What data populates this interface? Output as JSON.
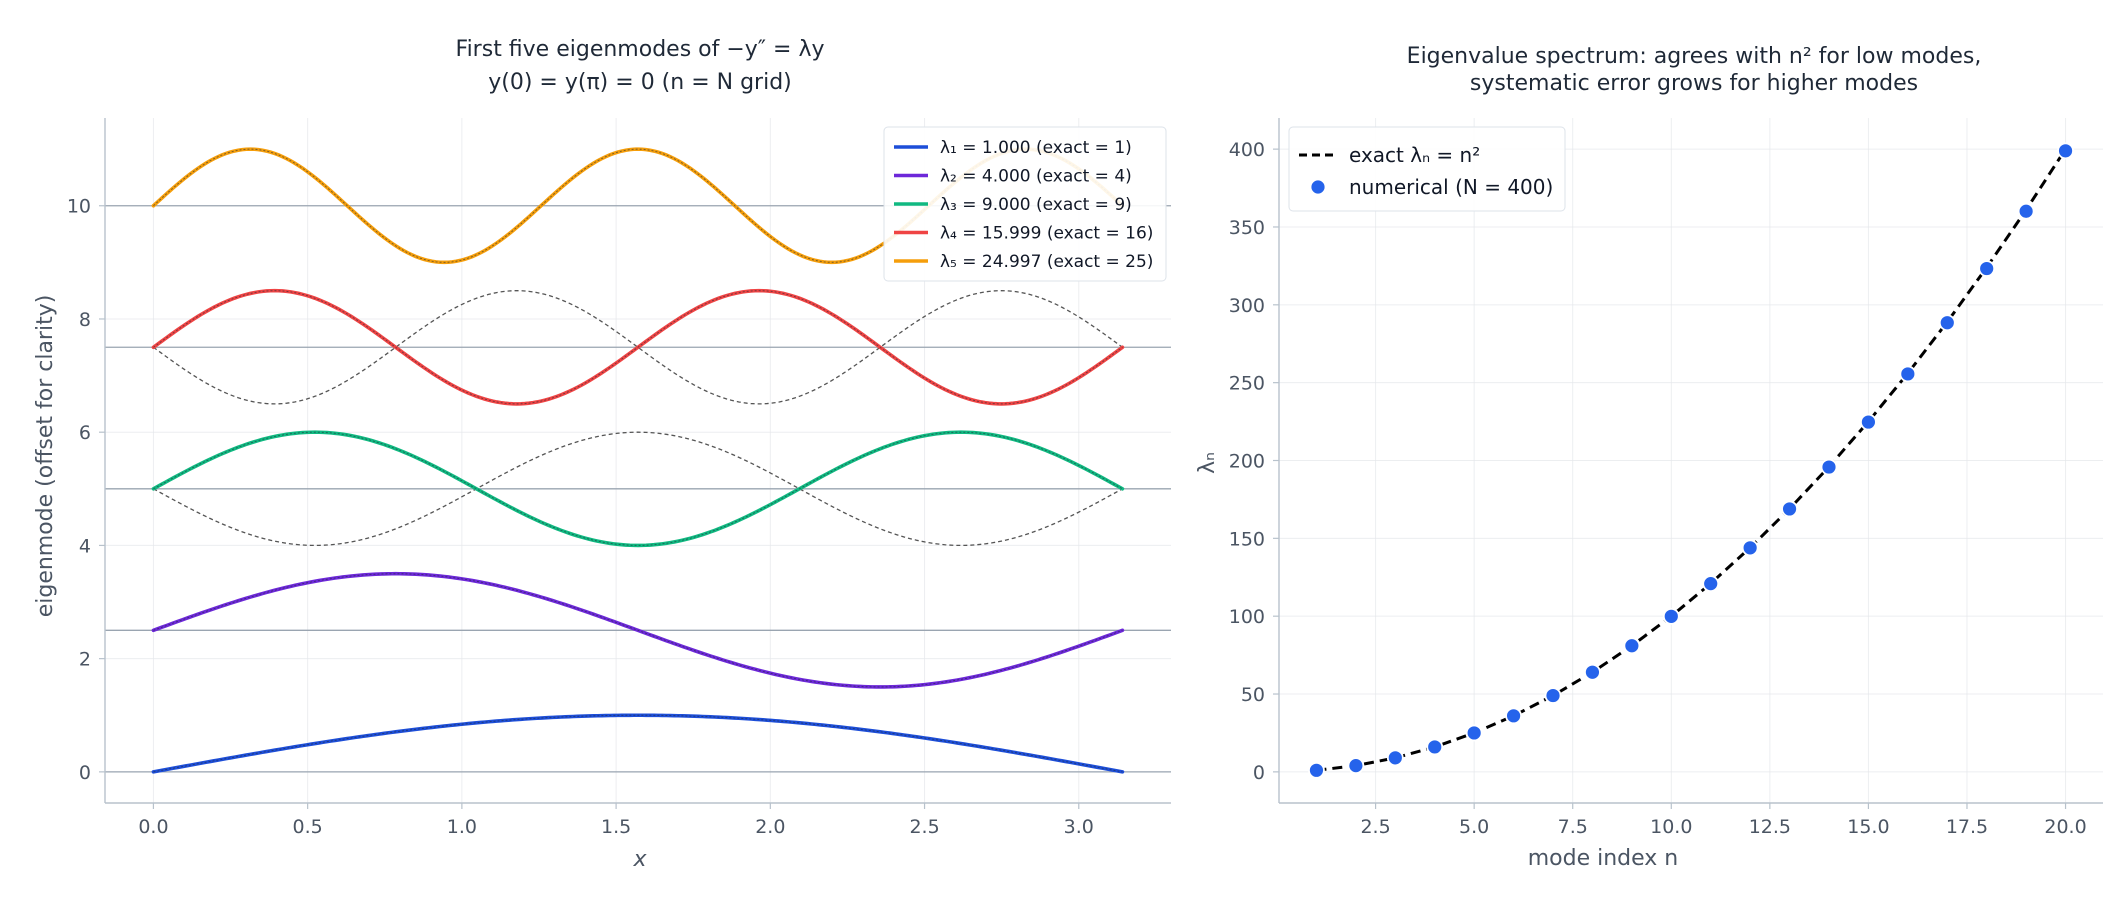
{
  "chart_data": [
    {
      "type": "line",
      "title": [
        "First five eigenmodes of −y″ = λy",
        "y(0) = y(π) = 0  (n = N grid)"
      ],
      "xlabel": "x",
      "ylabel": "eigenmode (offset for clarity)",
      "xlim": [
        -0.157,
        3.299
      ],
      "ylim": [
        -0.55,
        11.55
      ],
      "xticks": [
        "0.0",
        "0.5",
        "1.0",
        "1.5",
        "2.0",
        "2.5",
        "3.0"
      ],
      "xtick_values": [
        0,
        0.5,
        1.0,
        1.5,
        2.0,
        2.5,
        3.0
      ],
      "yticks": [
        "0",
        "2",
        "4",
        "6",
        "8",
        "10"
      ],
      "ytick_values": [
        0,
        2,
        4,
        6,
        8,
        10
      ],
      "x_range": [
        0,
        3.14159
      ],
      "offset_step": 2.5,
      "grid": true,
      "legend_position": "top-right",
      "series": [
        {
          "mode": 1,
          "name": "λ₁ = 1.000 (exact = 1)",
          "offset": 0.0,
          "color": "#1d4ed8"
        },
        {
          "mode": 2,
          "name": "λ₂ = 4.000 (exact = 4)",
          "offset": 2.5,
          "color": "#6d28d9"
        },
        {
          "mode": 3,
          "name": "λ₃ = 9.000 (exact = 9)",
          "offset": 5.0,
          "color": "#10b981"
        },
        {
          "mode": 4,
          "name": "λ₄ = 15.999 (exact = 16)",
          "offset": 7.5,
          "color": "#ef4444"
        },
        {
          "mode": 5,
          "name": "λ₅ = 24.997 (exact = 25)",
          "offset": 10.0,
          "color": "#f59e0b"
        }
      ]
    },
    {
      "type": "scatter",
      "title": [
        "Eigenvalue spectrum: agrees with n² for low modes,",
        "systematic error grows for higher modes"
      ],
      "xlabel": "mode index n",
      "ylabel": "λₙ",
      "xlim": [
        0.05,
        20.95
      ],
      "ylim": [
        -20,
        420
      ],
      "xticks": [
        "2.5",
        "5.0",
        "7.5",
        "10.0",
        "12.5",
        "15.0",
        "17.5",
        "20.0"
      ],
      "xtick_values": [
        2.5,
        5.0,
        7.5,
        10.0,
        12.5,
        15.0,
        17.5,
        20.0
      ],
      "yticks": [
        "0",
        "50",
        "100",
        "150",
        "200",
        "250",
        "300",
        "350",
        "400"
      ],
      "ytick_values": [
        0,
        50,
        100,
        150,
        200,
        250,
        300,
        350,
        400
      ],
      "grid": true,
      "legend_position": "top-left",
      "series": [
        {
          "name": "exact  λₙ = n²",
          "style": "dashed-line",
          "color": "#000000",
          "x": [
            1,
            2,
            3,
            4,
            5,
            6,
            7,
            8,
            9,
            10,
            11,
            12,
            13,
            14,
            15,
            16,
            17,
            18,
            19,
            20
          ],
          "values": [
            1,
            4,
            9,
            16,
            25,
            36,
            49,
            64,
            81,
            100,
            121,
            144,
            169,
            196,
            225,
            256,
            289,
            324,
            361,
            400
          ]
        },
        {
          "name": "numerical  (N = 400)",
          "style": "markers",
          "color": "#2563eb",
          "x": [
            1,
            2,
            3,
            4,
            5,
            6,
            7,
            8,
            9,
            10,
            11,
            12,
            13,
            14,
            15,
            16,
            17,
            18,
            19,
            20
          ],
          "values": [
            1.0,
            4.0,
            9.0,
            16.0,
            25.0,
            36.0,
            49.0,
            64.0,
            81.0,
            99.9,
            120.9,
            143.9,
            168.9,
            195.8,
            224.7,
            255.6,
            288.5,
            323.3,
            360.1,
            398.9
          ]
        }
      ]
    }
  ]
}
